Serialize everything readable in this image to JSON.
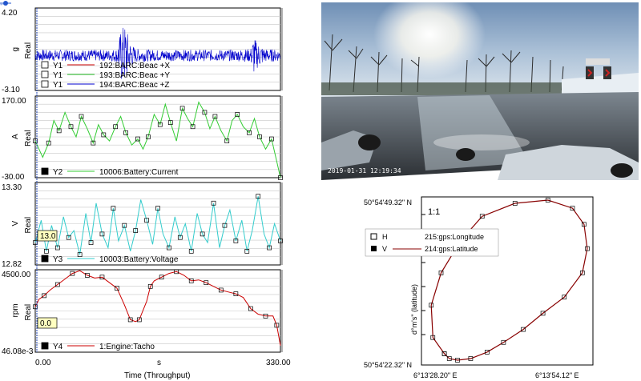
{
  "chart_data": [
    {
      "type": "line",
      "panel": "acceleration",
      "ylabel": "g",
      "yaxis_word": "Real",
      "ylim": [
        -3.1,
        4.2
      ],
      "y_top_label": "4.20",
      "y_bottom_label": "-3.10",
      "legend": [
        {
          "axis": "Y1",
          "name": "192:BARC:Beac +X",
          "color": "#cc0000"
        },
        {
          "axis": "Y1",
          "name": "193:BARC:Beac +Y",
          "color": "#22bb22"
        },
        {
          "axis": "Y1",
          "name": "194:BARC:Beac +Z",
          "color": "#0000cc"
        }
      ],
      "series_color": "#0000cc",
      "x": [
        0,
        20,
        40,
        60,
        80,
        100,
        110,
        116,
        122,
        126,
        135,
        160,
        200,
        240,
        270,
        290,
        294,
        298,
        310,
        330
      ],
      "envelope_amplitude": [
        0.5,
        0.5,
        0.5,
        0.5,
        0.5,
        0.5,
        0.6,
        2.5,
        2.8,
        1.4,
        0.6,
        0.5,
        0.5,
        0.5,
        0.5,
        0.6,
        1.8,
        1.2,
        0.6,
        0.5
      ]
    },
    {
      "type": "line",
      "panel": "battery-current",
      "ylabel": "A",
      "yaxis_word": "Real",
      "ylim": [
        -30.0,
        170.0
      ],
      "y_top_label": "170.00",
      "y_bottom_label": "-30.00",
      "legend": [
        {
          "axis": "Y2",
          "name": "10006:Battery:Current",
          "color": "#33cc33"
        }
      ],
      "series_color": "#33cc33",
      "x": [
        0,
        10,
        18,
        25,
        32,
        40,
        48,
        55,
        62,
        70,
        78,
        85,
        92,
        100,
        108,
        115,
        122,
        130,
        138,
        145,
        152,
        160,
        168,
        175,
        182,
        190,
        198,
        205,
        212,
        220,
        228,
        235,
        242,
        250,
        258,
        265,
        272,
        280,
        288,
        295,
        302,
        310,
        318,
        325,
        330
      ],
      "values": [
        60,
        20,
        55,
        110,
        85,
        130,
        95,
        70,
        120,
        90,
        55,
        100,
        75,
        60,
        95,
        120,
        80,
        50,
        65,
        40,
        70,
        125,
        100,
        150,
        105,
        60,
        140,
        115,
        95,
        155,
        130,
        90,
        120,
        85,
        60,
        110,
        125,
        95,
        80,
        115,
        70,
        40,
        65,
        10,
        -30
      ],
      "markers": true
    },
    {
      "type": "line",
      "panel": "battery-voltage",
      "ylabel": "V",
      "yaxis_word": "Real",
      "ylim": [
        12.82,
        13.3
      ],
      "y_top_label": "13.30",
      "y_bottom_label": "12.82",
      "cursor_value": "13.0",
      "legend": [
        {
          "axis": "Y3",
          "name": "10003:Battery:Voltage",
          "color": "#33cccc"
        }
      ],
      "series_color": "#33cccc",
      "x": [
        0,
        8,
        15,
        22,
        30,
        38,
        45,
        52,
        60,
        68,
        75,
        82,
        90,
        98,
        105,
        112,
        120,
        128,
        135,
        142,
        150,
        158,
        165,
        172,
        180,
        188,
        195,
        202,
        210,
        218,
        225,
        232,
        240,
        248,
        255,
        262,
        270,
        278,
        285,
        292,
        300,
        308,
        315,
        322,
        330
      ],
      "values": [
        12.95,
        13.08,
        12.9,
        13.05,
        12.92,
        13.1,
        12.98,
        13.02,
        12.88,
        13.12,
        12.95,
        13.18,
        13.0,
        12.92,
        13.15,
        12.96,
        13.05,
        12.9,
        13.02,
        13.2,
        13.08,
        12.94,
        13.15,
        13.0,
        12.92,
        13.1,
        12.98,
        13.06,
        12.9,
        13.12,
        13.0,
        12.95,
        13.18,
        12.92,
        13.05,
        13.14,
        12.96,
        13.08,
        12.9,
        13.02,
        13.22,
        13.0,
        12.92,
        13.06,
        12.96
      ],
      "markers": true
    },
    {
      "type": "line",
      "panel": "engine-tacho",
      "ylabel": "rpm",
      "yaxis_word": "Real",
      "ylim": [
        46.08,
        4500.0
      ],
      "y_top_label": "4500.00",
      "y_bottom_label": "46.08e-3",
      "cursor_value": "0.0",
      "legend": [
        {
          "axis": "Y4",
          "name": "1:Engine:Tacho",
          "color": "#cc0000"
        }
      ],
      "series_color": "#cc0000",
      "x": [
        0,
        5,
        12,
        20,
        30,
        40,
        50,
        60,
        70,
        80,
        90,
        100,
        110,
        120,
        128,
        135,
        140,
        150,
        155,
        160,
        170,
        180,
        190,
        200,
        210,
        220,
        230,
        240,
        250,
        260,
        270,
        280,
        290,
        300,
        310,
        320,
        325,
        330
      ],
      "values": [
        2500,
        2900,
        3100,
        3400,
        3700,
        4000,
        4300,
        4450,
        4200,
        4050,
        4100,
        3800,
        3500,
        2600,
        1800,
        1700,
        1800,
        2800,
        3600,
        3900,
        4100,
        4300,
        4400,
        4200,
        3900,
        3950,
        3800,
        3600,
        3400,
        3300,
        3200,
        3000,
        2400,
        2100,
        2000,
        2000,
        1500,
        400
      ],
      "markers": true
    },
    {
      "type": "line",
      "panel": "gps-track",
      "xlabel_ticks": [
        "6°13'28.20\" E",
        "6°13'54.12\" E"
      ],
      "ylabel_ticks": [
        "50°54'49.32\" N",
        "50°54'22.32\" N"
      ],
      "ylabel": "d°m's\" (latitude)",
      "scale_label": "1:1",
      "legend": [
        {
          "marker": "hollow",
          "letter": "H",
          "name": "215:gps:Longitude"
        },
        {
          "marker": "filled",
          "letter": "V",
          "name": "214:gps:Latitude"
        }
      ],
      "series_color": "#880000",
      "x": [
        0.12,
        0.05,
        0.04,
        0.1,
        0.22,
        0.35,
        0.55,
        0.75,
        0.9,
        0.97,
        0.99,
        0.96,
        0.85,
        0.72,
        0.6,
        0.48,
        0.38,
        0.28,
        0.2,
        0.15,
        0.12
      ],
      "values": [
        0.05,
        0.15,
        0.35,
        0.55,
        0.75,
        0.9,
        0.98,
        1.0,
        0.95,
        0.85,
        0.7,
        0.55,
        0.4,
        0.3,
        0.2,
        0.12,
        0.06,
        0.02,
        0.01,
        0.02,
        0.05
      ]
    }
  ],
  "shared_x": {
    "xlabel": "Time (Throughput)",
    "unit": "s",
    "x_start_label": "0.00",
    "x_end_label": "330.00",
    "xlim": [
      0,
      330
    ]
  },
  "camera": {
    "timestamp": "2019-01-31  12:19:34"
  }
}
